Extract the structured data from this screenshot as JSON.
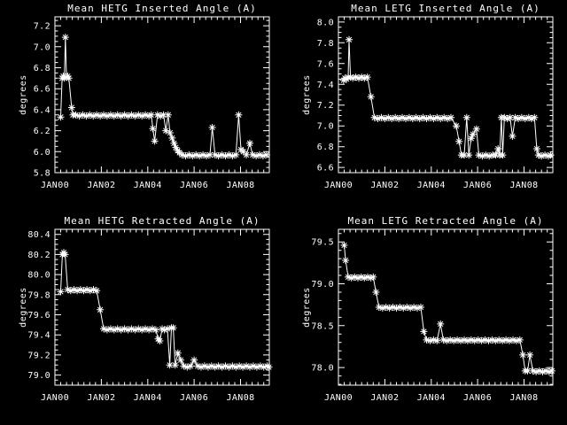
{
  "colors": {
    "background": "#000000",
    "foreground": "#ffffff"
  },
  "chart_data": [
    {
      "type": "line",
      "title": "Mean HETG Inserted Angle (A)",
      "ylabel": "degrees",
      "marker": "asterisk",
      "xtick_labels": [
        "JAN00",
        "JAN02",
        "JAN04",
        "JAN06",
        "JAN08"
      ],
      "xtick_years": [
        0,
        2,
        4,
        6,
        8
      ],
      "xtick_minor_step": 0.25,
      "xlim": [
        0,
        9.24
      ],
      "ylim": [
        5.8,
        7.285
      ],
      "yticks": [
        5.8,
        6.0,
        6.2,
        6.4,
        6.6,
        6.8,
        7.0,
        7.2
      ],
      "ytick_minor_step": 0.05,
      "points": [
        [
          0.25,
          6.33
        ],
        [
          0.31,
          6.7
        ],
        [
          0.36,
          6.72
        ],
        [
          0.41,
          6.7
        ],
        [
          0.45,
          7.09
        ],
        [
          0.5,
          6.71
        ],
        [
          0.55,
          6.72
        ],
        [
          0.6,
          6.7
        ],
        [
          0.72,
          6.42
        ],
        [
          0.78,
          6.35
        ],
        [
          0.9,
          6.35
        ],
        [
          1.05,
          6.34
        ],
        [
          1.2,
          6.35
        ],
        [
          1.35,
          6.34
        ],
        [
          1.5,
          6.35
        ],
        [
          1.65,
          6.34
        ],
        [
          1.8,
          6.35
        ],
        [
          1.95,
          6.34
        ],
        [
          2.1,
          6.35
        ],
        [
          2.25,
          6.34
        ],
        [
          2.4,
          6.35
        ],
        [
          2.55,
          6.34
        ],
        [
          2.7,
          6.35
        ],
        [
          2.85,
          6.34
        ],
        [
          3.0,
          6.35
        ],
        [
          3.15,
          6.34
        ],
        [
          3.3,
          6.35
        ],
        [
          3.45,
          6.34
        ],
        [
          3.6,
          6.35
        ],
        [
          3.75,
          6.34
        ],
        [
          3.9,
          6.35
        ],
        [
          4.05,
          6.34
        ],
        [
          4.15,
          6.35
        ],
        [
          4.22,
          6.22
        ],
        [
          4.3,
          6.1
        ],
        [
          4.42,
          6.35
        ],
        [
          4.55,
          6.34
        ],
        [
          4.68,
          6.35
        ],
        [
          4.78,
          6.2
        ],
        [
          4.88,
          6.35
        ],
        [
          4.96,
          6.18
        ],
        [
          5.05,
          6.13
        ],
        [
          5.13,
          6.08
        ],
        [
          5.21,
          6.04
        ],
        [
          5.29,
          6.01
        ],
        [
          5.37,
          5.99
        ],
        [
          5.48,
          5.97
        ],
        [
          5.63,
          5.96
        ],
        [
          5.78,
          5.97
        ],
        [
          5.93,
          5.96
        ],
        [
          6.08,
          5.97
        ],
        [
          6.23,
          5.96
        ],
        [
          6.38,
          5.97
        ],
        [
          6.53,
          5.96
        ],
        [
          6.68,
          5.97
        ],
        [
          6.78,
          6.23
        ],
        [
          6.9,
          5.97
        ],
        [
          7.05,
          5.96
        ],
        [
          7.2,
          5.97
        ],
        [
          7.35,
          5.96
        ],
        [
          7.5,
          5.97
        ],
        [
          7.65,
          5.96
        ],
        [
          7.8,
          5.97
        ],
        [
          7.92,
          6.35
        ],
        [
          8.02,
          6.02
        ],
        [
          8.12,
          6.0
        ],
        [
          8.25,
          5.97
        ],
        [
          8.4,
          6.08
        ],
        [
          8.52,
          5.97
        ],
        [
          8.67,
          5.96
        ],
        [
          8.82,
          5.97
        ],
        [
          8.97,
          5.96
        ],
        [
          9.12,
          5.97
        ]
      ]
    },
    {
      "type": "line",
      "title": "Mean LETG Inserted Angle (A)",
      "ylabel": "degrees",
      "marker": "asterisk",
      "xtick_labels": [
        "JAN00",
        "JAN02",
        "JAN04",
        "JAN06",
        "JAN08"
      ],
      "xtick_years": [
        0,
        2,
        4,
        6,
        8
      ],
      "xtick_minor_step": 0.25,
      "xlim": [
        0,
        9.24
      ],
      "ylim": [
        6.55,
        8.05
      ],
      "yticks": [
        6.6,
        6.8,
        7.0,
        7.2,
        7.4,
        7.6,
        7.8,
        8.0
      ],
      "ytick_minor_step": 0.05,
      "points": [
        [
          0.22,
          7.44
        ],
        [
          0.28,
          7.46
        ],
        [
          0.35,
          7.45
        ],
        [
          0.42,
          7.47
        ],
        [
          0.46,
          7.83
        ],
        [
          0.52,
          7.47
        ],
        [
          0.62,
          7.46
        ],
        [
          0.75,
          7.47
        ],
        [
          0.88,
          7.46
        ],
        [
          1.0,
          7.47
        ],
        [
          1.12,
          7.46
        ],
        [
          1.25,
          7.47
        ],
        [
          1.4,
          7.28
        ],
        [
          1.55,
          7.08
        ],
        [
          1.7,
          7.07
        ],
        [
          1.85,
          7.08
        ],
        [
          2.0,
          7.07
        ],
        [
          2.15,
          7.08
        ],
        [
          2.3,
          7.07
        ],
        [
          2.45,
          7.08
        ],
        [
          2.6,
          7.07
        ],
        [
          2.75,
          7.08
        ],
        [
          2.9,
          7.07
        ],
        [
          3.05,
          7.08
        ],
        [
          3.2,
          7.07
        ],
        [
          3.35,
          7.08
        ],
        [
          3.5,
          7.07
        ],
        [
          3.65,
          7.08
        ],
        [
          3.8,
          7.07
        ],
        [
          3.95,
          7.08
        ],
        [
          4.1,
          7.07
        ],
        [
          4.25,
          7.08
        ],
        [
          4.4,
          7.07
        ],
        [
          4.55,
          7.08
        ],
        [
          4.7,
          7.07
        ],
        [
          4.85,
          7.08
        ],
        [
          5.08,
          7.0
        ],
        [
          5.2,
          6.85
        ],
        [
          5.3,
          6.72
        ],
        [
          5.42,
          6.72
        ],
        [
          5.53,
          7.08
        ],
        [
          5.62,
          6.72
        ],
        [
          5.72,
          6.88
        ],
        [
          5.8,
          6.92
        ],
        [
          5.95,
          6.97
        ],
        [
          6.05,
          6.72
        ],
        [
          6.2,
          6.71
        ],
        [
          6.35,
          6.72
        ],
        [
          6.5,
          6.71
        ],
        [
          6.65,
          6.72
        ],
        [
          6.78,
          6.72
        ],
        [
          6.88,
          6.78
        ],
        [
          6.95,
          6.72
        ],
        [
          7.02,
          7.08
        ],
        [
          7.08,
          6.72
        ],
        [
          7.15,
          7.08
        ],
        [
          7.28,
          7.07
        ],
        [
          7.4,
          7.08
        ],
        [
          7.5,
          6.9
        ],
        [
          7.62,
          7.08
        ],
        [
          7.75,
          7.07
        ],
        [
          7.9,
          7.08
        ],
        [
          8.05,
          7.07
        ],
        [
          8.2,
          7.08
        ],
        [
          8.32,
          7.07
        ],
        [
          8.45,
          7.08
        ],
        [
          8.55,
          6.78
        ],
        [
          8.62,
          6.72
        ],
        [
          8.75,
          6.71
        ],
        [
          8.9,
          6.72
        ],
        [
          9.05,
          6.71
        ],
        [
          9.15,
          6.72
        ]
      ]
    },
    {
      "type": "line",
      "title": "Mean HETG Retracted Angle (A)",
      "ylabel": "degrees",
      "marker": "asterisk",
      "xtick_labels": [
        "JAN00",
        "JAN02",
        "JAN04",
        "JAN06",
        "JAN08"
      ],
      "xtick_years": [
        0,
        2,
        4,
        6,
        8
      ],
      "xtick_minor_step": 0.25,
      "xlim": [
        0,
        9.24
      ],
      "ylim": [
        78.9,
        80.45
      ],
      "yticks": [
        79.0,
        79.2,
        79.4,
        79.6,
        79.8,
        80.0,
        80.2,
        80.4
      ],
      "ytick_minor_step": 0.05,
      "points": [
        [
          0.25,
          79.83
        ],
        [
          0.32,
          80.2
        ],
        [
          0.38,
          80.22
        ],
        [
          0.44,
          80.2
        ],
        [
          0.55,
          79.85
        ],
        [
          0.68,
          79.84
        ],
        [
          0.82,
          79.85
        ],
        [
          0.96,
          79.84
        ],
        [
          1.1,
          79.85
        ],
        [
          1.24,
          79.84
        ],
        [
          1.38,
          79.85
        ],
        [
          1.52,
          79.84
        ],
        [
          1.66,
          79.85
        ],
        [
          1.8,
          79.84
        ],
        [
          1.95,
          79.65
        ],
        [
          2.1,
          79.46
        ],
        [
          2.25,
          79.45
        ],
        [
          2.4,
          79.46
        ],
        [
          2.55,
          79.45
        ],
        [
          2.7,
          79.46
        ],
        [
          2.85,
          79.45
        ],
        [
          3.0,
          79.46
        ],
        [
          3.15,
          79.45
        ],
        [
          3.3,
          79.46
        ],
        [
          3.45,
          79.45
        ],
        [
          3.6,
          79.46
        ],
        [
          3.75,
          79.45
        ],
        [
          3.9,
          79.46
        ],
        [
          4.05,
          79.45
        ],
        [
          4.2,
          79.46
        ],
        [
          4.35,
          79.45
        ],
        [
          4.45,
          79.36
        ],
        [
          4.52,
          79.34
        ],
        [
          4.62,
          79.46
        ],
        [
          4.72,
          79.45
        ],
        [
          4.85,
          79.46
        ],
        [
          4.95,
          79.1
        ],
        [
          5.02,
          79.47
        ],
        [
          5.1,
          79.47
        ],
        [
          5.18,
          79.1
        ],
        [
          5.3,
          79.22
        ],
        [
          5.42,
          79.15
        ],
        [
          5.55,
          79.09
        ],
        [
          5.7,
          79.08
        ],
        [
          5.85,
          79.09
        ],
        [
          6.0,
          79.15
        ],
        [
          6.15,
          79.09
        ],
        [
          6.3,
          79.08
        ],
        [
          6.45,
          79.09
        ],
        [
          6.6,
          79.08
        ],
        [
          6.75,
          79.09
        ],
        [
          6.9,
          79.08
        ],
        [
          7.05,
          79.09
        ],
        [
          7.2,
          79.08
        ],
        [
          7.35,
          79.09
        ],
        [
          7.5,
          79.08
        ],
        [
          7.65,
          79.09
        ],
        [
          7.8,
          79.08
        ],
        [
          7.95,
          79.09
        ],
        [
          8.1,
          79.08
        ],
        [
          8.25,
          79.09
        ],
        [
          8.4,
          79.08
        ],
        [
          8.55,
          79.09
        ],
        [
          8.7,
          79.08
        ],
        [
          8.85,
          79.09
        ],
        [
          9.0,
          79.08
        ],
        [
          9.15,
          79.09
        ],
        [
          9.22,
          79.08
        ]
      ]
    },
    {
      "type": "line",
      "title": "Mean LETG Retracted Angle (A)",
      "ylabel": "degrees",
      "marker": "asterisk",
      "xtick_labels": [
        "JAN00",
        "JAN02",
        "JAN04",
        "JAN06",
        "JAN08"
      ],
      "xtick_years": [
        0,
        2,
        4,
        6,
        8
      ],
      "xtick_minor_step": 0.25,
      "xlim": [
        0,
        9.24
      ],
      "ylim": [
        77.79,
        79.65
      ],
      "yticks": [
        78.0,
        78.5,
        79.0,
        79.5
      ],
      "ytick_minor_step": 0.1,
      "points": [
        [
          0.25,
          79.46
        ],
        [
          0.31,
          79.28
        ],
        [
          0.42,
          79.08
        ],
        [
          0.56,
          79.07
        ],
        [
          0.7,
          79.08
        ],
        [
          0.84,
          79.07
        ],
        [
          0.98,
          79.08
        ],
        [
          1.12,
          79.07
        ],
        [
          1.26,
          79.08
        ],
        [
          1.4,
          79.07
        ],
        [
          1.5,
          79.08
        ],
        [
          1.62,
          78.9
        ],
        [
          1.75,
          78.72
        ],
        [
          1.9,
          78.71
        ],
        [
          2.05,
          78.72
        ],
        [
          2.2,
          78.71
        ],
        [
          2.35,
          78.72
        ],
        [
          2.5,
          78.71
        ],
        [
          2.65,
          78.72
        ],
        [
          2.8,
          78.71
        ],
        [
          2.95,
          78.72
        ],
        [
          3.1,
          78.71
        ],
        [
          3.25,
          78.72
        ],
        [
          3.4,
          78.71
        ],
        [
          3.55,
          78.72
        ],
        [
          3.68,
          78.43
        ],
        [
          3.8,
          78.33
        ],
        [
          3.95,
          78.32
        ],
        [
          4.1,
          78.33
        ],
        [
          4.25,
          78.32
        ],
        [
          4.4,
          78.52
        ],
        [
          4.52,
          78.33
        ],
        [
          4.67,
          78.32
        ],
        [
          4.82,
          78.33
        ],
        [
          4.97,
          78.32
        ],
        [
          5.12,
          78.33
        ],
        [
          5.27,
          78.32
        ],
        [
          5.42,
          78.33
        ],
        [
          5.57,
          78.32
        ],
        [
          5.72,
          78.33
        ],
        [
          5.87,
          78.32
        ],
        [
          6.02,
          78.33
        ],
        [
          6.17,
          78.32
        ],
        [
          6.32,
          78.33
        ],
        [
          6.47,
          78.32
        ],
        [
          6.62,
          78.33
        ],
        [
          6.77,
          78.32
        ],
        [
          6.92,
          78.33
        ],
        [
          7.07,
          78.32
        ],
        [
          7.22,
          78.33
        ],
        [
          7.37,
          78.32
        ],
        [
          7.52,
          78.33
        ],
        [
          7.67,
          78.32
        ],
        [
          7.82,
          78.33
        ],
        [
          7.95,
          78.15
        ],
        [
          8.05,
          77.96
        ],
        [
          8.15,
          77.96
        ],
        [
          8.25,
          78.15
        ],
        [
          8.38,
          77.96
        ],
        [
          8.52,
          77.95
        ],
        [
          8.66,
          77.96
        ],
        [
          8.8,
          77.95
        ],
        [
          8.94,
          77.96
        ],
        [
          9.08,
          77.95
        ],
        [
          9.2,
          77.96
        ]
      ]
    }
  ]
}
